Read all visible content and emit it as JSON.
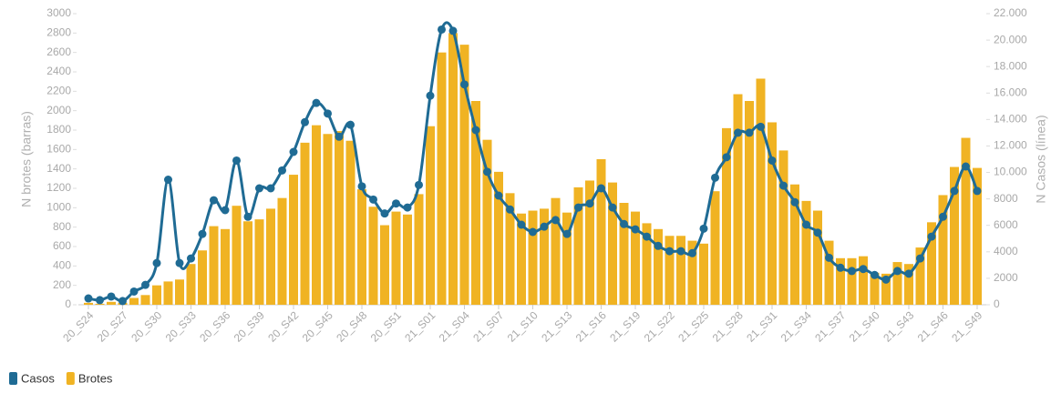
{
  "chart_data": {
    "type": "combo",
    "y_label": "N brotes (barras)",
    "y2_label": "N Casos (línea)",
    "categories": [
      "20_S24",
      null,
      null,
      "20_S27",
      null,
      null,
      "20_S30",
      null,
      null,
      "20_S33",
      null,
      null,
      "20_S36",
      null,
      null,
      "20_S39",
      null,
      null,
      "20_S42",
      null,
      null,
      "20_S45",
      null,
      null,
      "20_S48",
      null,
      null,
      "20_S51",
      null,
      null,
      "21_S01",
      null,
      null,
      "21_S04",
      null,
      null,
      "21_S07",
      null,
      null,
      "21_S10",
      null,
      null,
      "21_S13",
      null,
      null,
      "21_S16",
      null,
      null,
      "21_S19",
      null,
      null,
      "21_S22",
      null,
      null,
      "21_S25",
      null,
      null,
      "21_S28",
      null,
      null,
      "21_S31",
      null,
      null,
      "21_S34",
      null,
      null,
      "21_S37",
      null,
      null,
      "21_S40",
      null,
      null,
      "21_S43",
      null,
      null,
      "21_S46",
      null,
      null,
      "21_S49"
    ],
    "series": [
      {
        "name": "Casos",
        "type": "line",
        "axis": "y2",
        "color": "#1f6b94",
        "values": [
          480,
          350,
          620,
          280,
          1000,
          1500,
          3150,
          9450,
          3150,
          3500,
          5350,
          7900,
          7150,
          10900,
          6650,
          8800,
          8800,
          10150,
          11550,
          13800,
          15250,
          14450,
          12700,
          13600,
          8950,
          7950,
          6900,
          7650,
          7350,
          9050,
          15800,
          20800,
          20700,
          16650,
          13200,
          10050,
          8250,
          7200,
          6050,
          5500,
          5900,
          6400,
          5350,
          7350,
          7650,
          8800,
          7350,
          6100,
          5700,
          5150,
          4450,
          4050,
          4050,
          3900,
          5750,
          9600,
          11150,
          13000,
          13000,
          13450,
          10900,
          9000,
          7750,
          6050,
          5450,
          3550,
          2800,
          2550,
          2700,
          2250,
          1900,
          2550,
          2350,
          3500,
          5150,
          6650,
          8600,
          10450,
          8600
        ]
      },
      {
        "name": "Brotes",
        "type": "bar",
        "color": "#f0b323",
        "values": [
          20,
          10,
          30,
          20,
          70,
          100,
          200,
          240,
          260,
          420,
          560,
          810,
          780,
          1020,
          860,
          880,
          990,
          1100,
          1340,
          1670,
          1850,
          1760,
          1790,
          1690,
          1190,
          1010,
          820,
          960,
          930,
          1140,
          1840,
          2600,
          2800,
          2680,
          2100,
          1700,
          1370,
          1150,
          940,
          970,
          990,
          1100,
          950,
          1210,
          1280,
          1500,
          1260,
          1050,
          960,
          840,
          780,
          710,
          710,
          660,
          630,
          1170,
          1820,
          2170,
          2100,
          2330,
          1880,
          1590,
          1240,
          1070,
          970,
          660,
          480,
          480,
          500,
          330,
          320,
          440,
          420,
          590,
          850,
          1130,
          1420,
          1720,
          1410
        ]
      }
    ],
    "ylim": [
      0,
      3000
    ],
    "yticks": [
      0,
      200,
      400,
      600,
      800,
      1000,
      1200,
      1400,
      1600,
      1800,
      2000,
      2200,
      2400,
      2600,
      2800,
      3000
    ],
    "y2lim": [
      0,
      22000
    ],
    "y2ticks": [
      0,
      2000,
      4000,
      6000,
      8000,
      {
        "value": 10000,
        "label": "10.000"
      },
      {
        "value": 12000,
        "label": "12.000"
      },
      {
        "value": 14000,
        "label": "14.000"
      },
      {
        "value": 16000,
        "label": "16.000"
      },
      {
        "value": 18000,
        "label": "18.000"
      },
      {
        "value": 20000,
        "label": "20.000"
      },
      {
        "value": 22000,
        "label": "22.000"
      }
    ],
    "legend": "bottom-left"
  }
}
